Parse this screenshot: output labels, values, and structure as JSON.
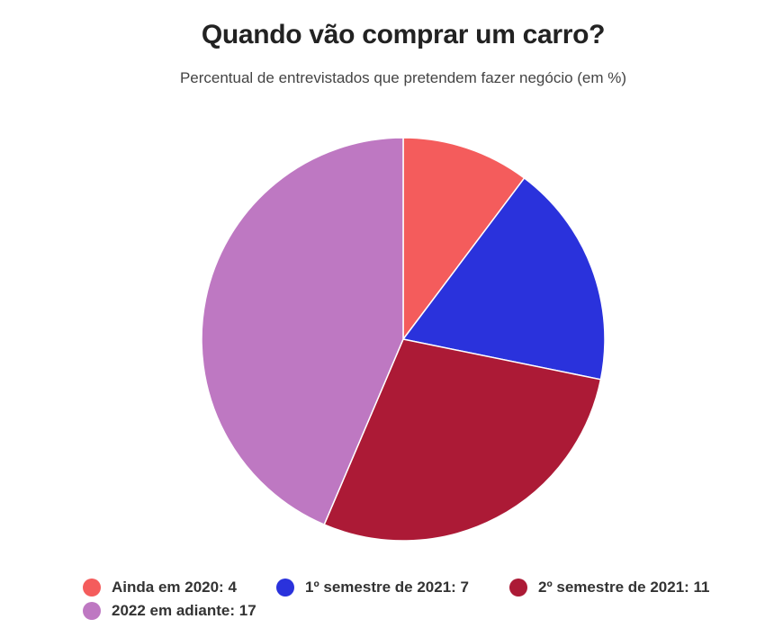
{
  "chart_data": {
    "type": "pie",
    "title": "Quando vão comprar um carro?",
    "subtitle": "Percentual de entrevistados que pretendem fazer negócio (em %)",
    "categories": [
      "Ainda em 2020",
      "1º semestre de 2021",
      "2º semestre de 2021",
      "2022 em adiante"
    ],
    "values": [
      4,
      7,
      11,
      17
    ],
    "colors": [
      "#f45c5c",
      "#2a32dc",
      "#ac1a36",
      "#be78c2"
    ],
    "legend": {
      "placement": "bottom",
      "entries": [
        "Ainda em 2020: 4",
        "1º semestre de 2021: 7",
        "2º semestre de 2021: 11",
        "2022 em adiante: 17"
      ]
    }
  }
}
